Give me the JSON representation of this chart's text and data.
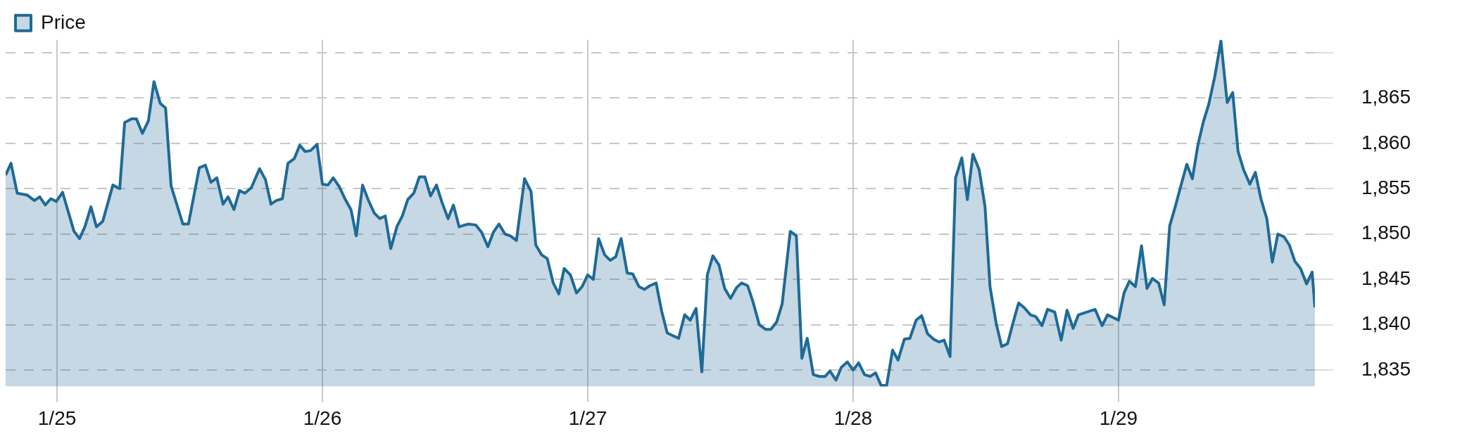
{
  "chart_data": {
    "type": "area",
    "legend": "top left",
    "grid": true,
    "xlim": [
      "--01-24T19:21",
      "--01-29T17:46"
    ],
    "xticks": [
      {
        "value": "--01-25",
        "label": "1/25"
      },
      {
        "value": "--01-26",
        "label": "1/26"
      },
      {
        "value": "--01-27",
        "label": "1/27"
      },
      {
        "value": "--01-28",
        "label": "1/28"
      },
      {
        "value": "--01-29",
        "label": "1/29"
      }
    ],
    "ylim": [
      1833.2,
      1871.4
    ],
    "yticks": [
      {
        "value": 1835,
        "label": "1,835"
      },
      {
        "value": 1840,
        "label": "1,840"
      },
      {
        "value": 1845,
        "label": "1,845"
      },
      {
        "value": 1850,
        "label": "1,850"
      },
      {
        "value": 1855,
        "label": "1,855"
      },
      {
        "value": 1860,
        "label": "1,860"
      },
      {
        "value": 1865,
        "label": "1,865"
      },
      {
        "value": 1870,
        "label": null
      }
    ],
    "x": [
      "--01-24T19:21",
      "--01-24T19:50",
      "--01-24T20:24",
      "--01-24T21:18",
      "--01-24T21:57",
      "--01-24T22:26",
      "--01-24T22:56",
      "--01-24T23:26",
      "--01-24T23:56",
      "--01-25T00:30",
      "--01-25T01:32",
      "--01-25T02:02",
      "--01-25T02:31",
      "--01-25T03:04",
      "--01-25T03:34",
      "--01-25T04:08",
      "--01-25T05:03",
      "--01-25T05:40",
      "--01-25T06:07",
      "--01-25T06:44",
      "--01-25T07:11",
      "--01-25T07:43",
      "--01-25T08:16",
      "--01-25T08:46",
      "--01-25T09:20",
      "--01-25T09:49",
      "--01-25T10:19",
      "--01-25T11:23",
      "--01-25T11:53",
      "--01-25T12:52",
      "--01-25T13:25",
      "--01-25T13:55",
      "--01-25T14:27",
      "--01-25T15:01",
      "--01-25T15:28",
      "--01-25T16:00",
      "--01-25T16:30",
      "--01-25T16:59",
      "--01-25T17:34",
      "--01-25T18:19",
      "--01-25T18:51",
      "--01-25T19:21",
      "--01-25T19:50",
      "--01-25T20:23",
      "--01-25T20:53",
      "--01-25T21:27",
      "--01-25T21:57",
      "--01-25T22:26",
      "--01-25T22:56",
      "--01-25T23:31",
      "--01-26T00:00",
      "--01-26T00:30",
      "--01-26T00:59",
      "--01-26T01:32",
      "--01-26T02:02",
      "--01-26T02:35",
      "--01-26T03:04",
      "--01-26T03:38",
      "--01-26T04:08",
      "--01-26T04:42",
      "--01-26T05:12",
      "--01-26T05:41",
      "--01-26T06:11",
      "--01-26T06:44",
      "--01-26T07:14",
      "--01-26T07:43",
      "--01-26T08:16",
      "--01-26T08:46",
      "--01-26T09:16",
      "--01-26T09:47",
      "--01-26T10:19",
      "--01-26T10:49",
      "--01-26T11:22",
      "--01-26T11:51",
      "--01-26T12:22",
      "--01-26T13:10",
      "--01-26T13:52",
      "--01-26T14:24",
      "--01-26T14:58",
      "--01-26T15:28",
      "--01-26T15:58",
      "--01-26T16:31",
      "--01-26T17:00",
      "--01-26T17:33",
      "--01-26T18:17",
      "--01-26T18:52",
      "--01-26T19:18",
      "--01-26T19:50",
      "--01-26T20:20",
      "--01-26T20:53",
      "--01-26T21:23",
      "--01-26T21:52",
      "--01-26T22:26",
      "--01-26T22:59",
      "--01-26T23:29",
      "--01-27T00:00",
      "--01-27T00:30",
      "--01-27T00:59",
      "--01-27T01:32",
      "--01-27T02:02",
      "--01-27T02:32",
      "--01-27T03:01",
      "--01-27T03:34",
      "--01-27T04:04",
      "--01-27T04:38",
      "--01-27T05:08",
      "--01-27T05:37",
      "--01-27T06:11",
      "--01-27T06:41",
      "--01-27T07:11",
      "--01-27T07:41",
      "--01-27T08:13",
      "--01-27T08:46",
      "--01-27T09:16",
      "--01-27T09:48",
      "--01-27T10:19",
      "--01-27T10:49",
      "--01-27T11:19",
      "--01-27T11:52",
      "--01-27T12:23",
      "--01-27T12:55",
      "--01-27T13:28",
      "--01-27T13:55",
      "--01-27T14:28",
      "--01-27T14:57",
      "--01-27T15:31",
      "--01-27T16:04",
      "--01-27T16:34",
      "--01-27T17:05",
      "--01-27T17:35",
      "--01-27T18:19",
      "--01-27T18:52",
      "--01-27T19:22",
      "--01-27T19:51",
      "--01-27T20:24",
      "--01-27T20:58",
      "--01-27T21:28",
      "--01-27T21:54",
      "--01-27T22:27",
      "--01-27T22:56",
      "--01-27T23:29",
      "--01-28T00:00",
      "--01-28T00:30",
      "--01-28T01:02",
      "--01-28T01:32",
      "--01-28T02:02",
      "--01-28T02:32",
      "--01-28T03:02",
      "--01-28T03:34",
      "--01-28T04:04",
      "--01-28T04:38",
      "--01-28T05:08",
      "--01-28T05:42",
      "--01-28T06:12",
      "--01-28T06:44",
      "--01-28T07:17",
      "--01-28T07:47",
      "--01-28T08:14",
      "--01-28T08:46",
      "--01-28T09:16",
      "--01-28T09:50",
      "--01-28T10:20",
      "--01-28T10:50",
      "--01-28T11:24",
      "--01-28T11:56",
      "--01-28T12:23",
      "--01-28T12:56",
      "--01-28T13:26",
      "--01-28T13:58",
      "--01-28T14:25",
      "--01-28T14:58",
      "--01-28T15:28",
      "--01-28T16:02",
      "--01-28T16:31",
      "--01-28T17:05",
      "--01-28T17:35",
      "--01-28T18:14",
      "--01-28T18:49",
      "--01-28T19:21",
      "--01-28T19:54",
      "--01-28T20:23",
      "--01-28T21:53",
      "--01-28T22:31",
      "--01-28T23:01",
      "--01-29T00:00",
      "--01-29T00:30",
      "--01-29T00:59",
      "--01-29T01:32",
      "--01-29T02:05",
      "--01-29T02:35",
      "--01-29T03:04",
      "--01-29T03:38",
      "--01-29T04:08",
      "--01-29T04:38",
      "--01-29T05:08",
      "--01-29T05:37",
      "--01-29T06:11",
      "--01-29T06:41",
      "--01-29T07:11",
      "--01-29T07:41",
      "--01-29T08:10",
      "--01-29T08:43",
      "--01-29T09:16",
      "--01-29T09:50",
      "--01-29T10:20",
      "--01-29T10:49",
      "--01-29T11:19",
      "--01-29T11:53",
      "--01-29T12:23",
      "--01-29T12:53",
      "--01-29T13:25",
      "--01-29T13:55",
      "--01-29T14:25",
      "--01-29T14:58",
      "--01-29T15:27",
      "--01-29T15:57",
      "--01-29T16:28",
      "--01-29T17:01",
      "--01-29T17:31",
      "--01-29T17:46"
    ],
    "series": [
      {
        "name": "Price",
        "color": "#1f6a96",
        "values": [
          1856.5,
          1857.8,
          1854.5,
          1854.3,
          1853.7,
          1854.1,
          1853.2,
          1853.9,
          1853.6,
          1854.6,
          1850.3,
          1849.5,
          1850.8,
          1853.0,
          1850.8,
          1851.4,
          1855.4,
          1855.0,
          1862.3,
          1862.7,
          1862.7,
          1861.1,
          1862.5,
          1866.8,
          1864.4,
          1863.9,
          1855.3,
          1851.1,
          1851.1,
          1857.3,
          1857.6,
          1855.7,
          1856.2,
          1853.3,
          1854.1,
          1852.7,
          1854.8,
          1854.5,
          1855.1,
          1857.2,
          1856.0,
          1853.3,
          1853.7,
          1853.9,
          1857.8,
          1858.3,
          1859.8,
          1859.1,
          1859.2,
          1859.9,
          1855.5,
          1855.4,
          1856.2,
          1855.2,
          1853.9,
          1852.7,
          1849.8,
          1855.4,
          1853.8,
          1852.3,
          1851.7,
          1852.0,
          1848.4,
          1850.8,
          1852.0,
          1853.8,
          1854.5,
          1856.3,
          1856.3,
          1854.2,
          1855.4,
          1853.5,
          1851.7,
          1853.2,
          1850.8,
          1851.1,
          1851.0,
          1850.2,
          1848.6,
          1850.2,
          1851.1,
          1850.0,
          1849.8,
          1849.3,
          1856.1,
          1854.7,
          1848.8,
          1847.7,
          1847.3,
          1844.6,
          1843.4,
          1846.2,
          1845.5,
          1843.5,
          1844.2,
          1845.5,
          1845.0,
          1849.5,
          1847.7,
          1847.1,
          1847.5,
          1849.5,
          1845.7,
          1845.6,
          1844.2,
          1843.9,
          1844.3,
          1844.6,
          1841.5,
          1839.1,
          1838.8,
          1838.5,
          1841.1,
          1840.5,
          1841.8,
          1834.8,
          1845.5,
          1847.6,
          1846.6,
          1844.0,
          1842.9,
          1844.1,
          1844.6,
          1844.3,
          1842.5,
          1840.0,
          1839.5,
          1839.5,
          1840.3,
          1842.3,
          1850.3,
          1849.8,
          1836.3,
          1838.5,
          1834.5,
          1834.3,
          1834.3,
          1834.9,
          1833.9,
          1835.3,
          1835.9,
          1835.0,
          1835.8,
          1834.5,
          1834.3,
          1834.7,
          1833.3,
          1833.3,
          1837.2,
          1836.1,
          1838.4,
          1838.5,
          1840.5,
          1841.0,
          1839.0,
          1838.4,
          1838.1,
          1838.3,
          1836.5,
          1856.2,
          1858.4,
          1853.8,
          1858.8,
          1857.1,
          1853.0,
          1844.2,
          1840.2,
          1837.6,
          1837.9,
          1840.0,
          1842.4,
          1841.9,
          1841.1,
          1840.9,
          1839.9,
          1841.7,
          1841.4,
          1838.3,
          1841.6,
          1839.6,
          1841.1,
          1841.7,
          1839.9,
          1841.1,
          1840.5,
          1843.5,
          1844.8,
          1844.2,
          1848.7,
          1844.0,
          1845.1,
          1844.6,
          1842.2,
          1850.9,
          1853.0,
          1855.2,
          1857.7,
          1856.1,
          1859.8,
          1862.4,
          1864.3,
          1867.4,
          1871.3,
          1864.5,
          1865.6,
          1859.1,
          1857.1,
          1855.5,
          1856.8,
          1853.9,
          1851.7,
          1846.9,
          1850.0,
          1849.7,
          1848.8,
          1847.0,
          1846.2,
          1844.5,
          1845.8,
          1841.9
        ]
      }
    ]
  }
}
